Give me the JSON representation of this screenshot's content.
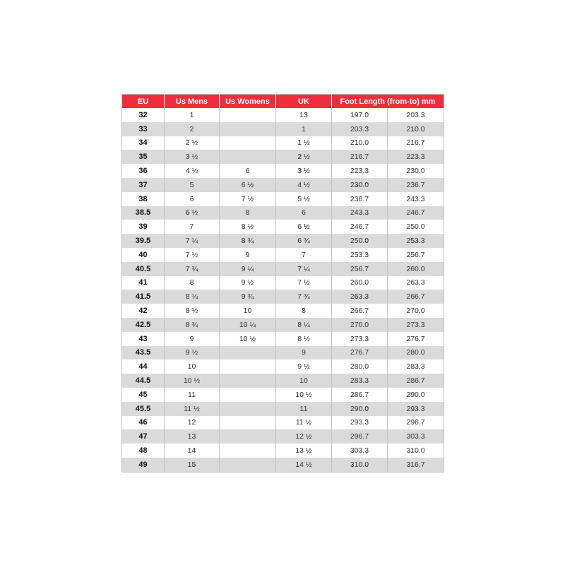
{
  "header": {
    "eu": "EU",
    "us_mens": "Us Mens",
    "us_womens": "Us Womens",
    "uk": "UK",
    "foot_length": "Foot Length (from-to) mm"
  },
  "colors": {
    "header_bg": "#ee2e3c",
    "stripe": "#dadada"
  },
  "rows": [
    [
      "32",
      "1",
      "",
      "13",
      "197.0",
      "203.3"
    ],
    [
      "33",
      "2",
      "",
      "1",
      "203.3",
      "210.0"
    ],
    [
      "34",
      "2 ½",
      "",
      "1 ½",
      "210.0",
      "216.7"
    ],
    [
      "35",
      "3 ½",
      "",
      "2 ½",
      "216.7",
      "223.3"
    ],
    [
      "36",
      "4 ½",
      "6",
      "3 ½",
      "223.3",
      "230.0"
    ],
    [
      "37",
      "5",
      "6 ½",
      "4 ½",
      "230.0",
      "236.7"
    ],
    [
      "38",
      "6",
      "7 ½",
      "5 ½",
      "236.7",
      "243.3"
    ],
    [
      "38.5",
      "6 ½",
      "8",
      "6",
      "243.3",
      "246.7"
    ],
    [
      "39",
      "7",
      "8 ½",
      "6 ½",
      "246.7",
      "250.0"
    ],
    [
      "39.5",
      "7 ¼",
      "8 ¾",
      "6 ¾",
      "250.0",
      "253.3"
    ],
    [
      "40",
      "7 ½",
      "9",
      "7",
      "253.3",
      "256.7"
    ],
    [
      "40.5",
      "7 ¾",
      "9 ¼",
      "7 ¼",
      "256.7",
      "260.0"
    ],
    [
      "41",
      "8",
      "9 ½",
      "7 ½",
      "260.0",
      "263.3"
    ],
    [
      "41.5",
      "8 ¼",
      "9 ¾",
      "7 ¾",
      "263.3",
      "266.7"
    ],
    [
      "42",
      "8 ½",
      "10",
      "8",
      "266.7",
      "270.0"
    ],
    [
      "42.5",
      "8 ¾",
      "10 ¼",
      "8 ¼",
      "270.0",
      "273.3"
    ],
    [
      "43",
      "9",
      "10 ½",
      "8 ½",
      "273.3",
      "276.7"
    ],
    [
      "43.5",
      "9 ½",
      "",
      "9",
      "276.7",
      "280.0"
    ],
    [
      "44",
      "10",
      "",
      "9 ½",
      "280.0",
      "283.3"
    ],
    [
      "44.5",
      "10 ½",
      "",
      "10",
      "283.3",
      "286.7"
    ],
    [
      "45",
      "11",
      "",
      "10 ½",
      "286.7",
      "290.0"
    ],
    [
      "45.5",
      "11 ½",
      "",
      "11",
      "290.0",
      "293.3"
    ],
    [
      "46",
      "12",
      "",
      "11 ½",
      "293.3",
      "296.7"
    ],
    [
      "47",
      "13",
      "",
      "12 ½",
      "296.7",
      "303.3"
    ],
    [
      "48",
      "14",
      "",
      "13 ½",
      "303.3",
      "310.0"
    ],
    [
      "49",
      "15",
      "",
      "14 ½",
      "310.0",
      "316.7"
    ]
  ]
}
